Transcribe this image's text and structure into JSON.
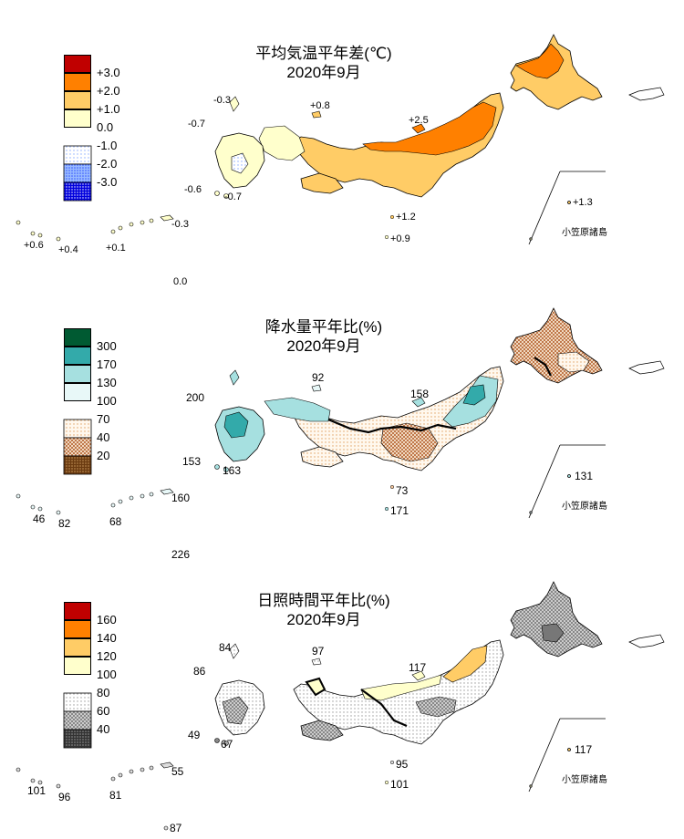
{
  "panels": [
    {
      "id": "temperature",
      "title": "平均気温平年差(℃)",
      "subtitle": "2020年9月",
      "legend": [
        {
          "label": "+3.0",
          "color": "#c00000",
          "pattern": "solid"
        },
        {
          "label": "+2.0",
          "color": "#ff8000",
          "pattern": "solid"
        },
        {
          "label": "+1.0",
          "color": "#ffcc66",
          "pattern": "solid"
        },
        {
          "label": "0.0",
          "color": "#ffffcc",
          "pattern": "solid"
        },
        {
          "label": "-1.0",
          "color": "#aaccff",
          "pattern": "dots-light"
        },
        {
          "label": "-2.0",
          "color": "#5577ff",
          "pattern": "dots-medium"
        },
        {
          "label": "-3.0",
          "color": "#0000dd",
          "pattern": "dots-dense"
        }
      ],
      "values": {
        "tsushima": "-0.3",
        "goto_west": "-0.7",
        "oki": "+0.8",
        "sado": "+2.5",
        "tanegashima": "-0.6",
        "yakushima": "-0.7",
        "izu_a": "+1.2",
        "izu_b": "+0.9",
        "ryukyu_1": "+0.6",
        "ryukyu_2": "+0.4",
        "ryukyu_3": "+0.1",
        "ryukyu_4": "-0.3",
        "daito": "0.0",
        "ogasawara": "+1.3"
      },
      "bonin_label": "小笠原諸島"
    },
    {
      "id": "precipitation",
      "title": "降水量平年比(%)",
      "subtitle": "2020年9月",
      "legend": [
        {
          "label": "300",
          "color": "#005a32",
          "pattern": "solid"
        },
        {
          "label": "170",
          "color": "#33aaaa",
          "pattern": "solid"
        },
        {
          "label": "130",
          "color": "#a6e0e0",
          "pattern": "solid"
        },
        {
          "label": "100",
          "color": "#e8f8f8",
          "pattern": "solid"
        },
        {
          "label": "70",
          "color": "#f4c8a0",
          "pattern": "dots-light"
        },
        {
          "label": "40",
          "color": "#c0784a",
          "pattern": "checker"
        },
        {
          "label": "20",
          "color": "#6a3a10",
          "pattern": "dots-dense"
        }
      ],
      "values": {
        "tsushima": "200",
        "oki": "92",
        "sado": "158",
        "tanegashima": "153",
        "yakushima": "163",
        "izu_a": "73",
        "izu_b": "171",
        "ryukyu_1": "46",
        "ryukyu_2": "82",
        "ryukyu_3": "68",
        "ryukyu_4": "160",
        "daito": "226",
        "ogasawara": "131"
      },
      "bonin_label": "小笠原諸島"
    },
    {
      "id": "sunshine",
      "title": "日照時間平年比(%)",
      "subtitle": "2020年9月",
      "legend": [
        {
          "label": "160",
          "color": "#c00000",
          "pattern": "solid"
        },
        {
          "label": "140",
          "color": "#ff8000",
          "pattern": "solid"
        },
        {
          "label": "120",
          "color": "#ffcc66",
          "pattern": "solid"
        },
        {
          "label": "100",
          "color": "#ffffcc",
          "pattern": "solid"
        },
        {
          "label": "80",
          "color": "#dddddd",
          "pattern": "dots-light"
        },
        {
          "label": "60",
          "color": "#999999",
          "pattern": "checker"
        },
        {
          "label": "40",
          "color": "#333333",
          "pattern": "dots-dense"
        }
      ],
      "values": {
        "tsushima": "84",
        "goto_west": "86",
        "oki": "97",
        "sado": "117",
        "tanegashima": "49",
        "yakushima": "67",
        "izu_a": "95",
        "izu_b": "101",
        "ryukyu_1": "101",
        "ryukyu_2": "96",
        "ryukyu_3": "81",
        "ryukyu_4": "55",
        "daito": "87",
        "ogasawara": "117"
      },
      "bonin_label": "小笠原諸島"
    }
  ]
}
